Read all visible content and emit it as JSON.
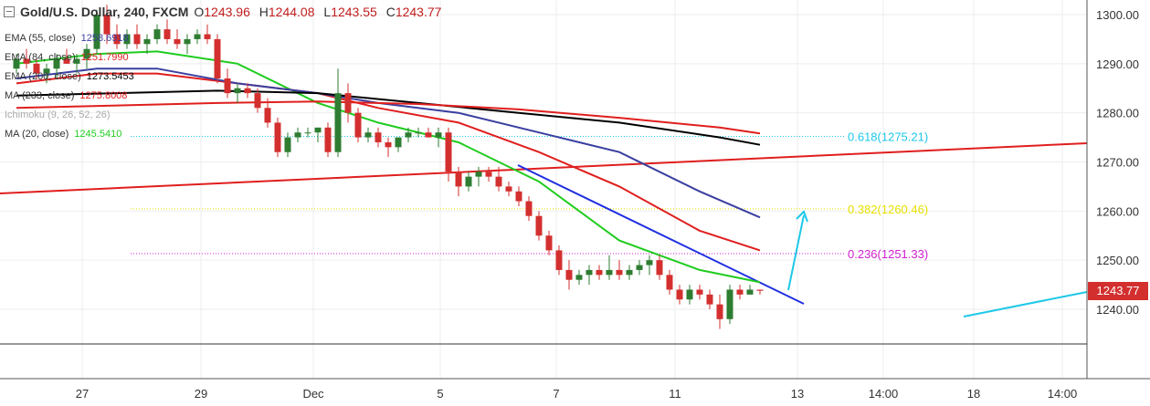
{
  "header": {
    "title": "Gold/U.S. Dollar, 240, FXCM",
    "open_key": "O",
    "open": "1243.96",
    "high_key": "H",
    "high": "1244.08",
    "low_key": "L",
    "low": "1243.55",
    "close_key": "C",
    "close": "1243.77"
  },
  "indicators": [
    {
      "name": "EMA (55, close)",
      "value": "1258.6918",
      "color": "#3a3fa0"
    },
    {
      "name": "EMA (84, close)",
      "value": "1251.7990",
      "color": "#e01e1e"
    },
    {
      "name": "EMA (200, close)",
      "value": "1273.5453",
      "color": "#000000"
    },
    {
      "name": "MA (233, close)",
      "value": "1275.8008",
      "color": "#e01e1e"
    },
    {
      "name": "Ichimoku (9, 26, 52, 26)",
      "value": "",
      "color": "#aaaaaa"
    },
    {
      "name": "MA (20, close)",
      "value": "1245.5410",
      "color": "#1fcc1f"
    }
  ],
  "fib_levels": [
    {
      "label": "0.618(1275.21)",
      "price": 1275.21,
      "color": "#1ec8e8"
    },
    {
      "label": "0.382(1260.46)",
      "price": 1260.46,
      "color": "#e8e000"
    },
    {
      "label": "0.236(1251.33)",
      "price": 1251.33,
      "color": "#d020d0"
    }
  ],
  "last_price": {
    "label": "1243.77",
    "color": "#d32f2f"
  },
  "colors": {
    "up": "#2e7d32",
    "down": "#d32f2f",
    "grid": "#eeeeee"
  },
  "chart_data": {
    "type": "candlestick",
    "yaxis": {
      "ticks": [
        "1300.00",
        "1290.00",
        "1280.00",
        "1270.00",
        "1260.00",
        "1250.00",
        "1240.00"
      ],
      "ylim": [
        1232,
        1302
      ]
    },
    "xaxis": {
      "ticks": [
        "27",
        "29",
        "Dec",
        "5",
        "7",
        "11",
        "13",
        "14:00",
        "18",
        "14:00"
      ]
    },
    "candles": [
      [
        1289,
        1292,
        1288,
        1291
      ],
      [
        1291,
        1293,
        1289,
        1290
      ],
      [
        1290,
        1291,
        1287,
        1288
      ],
      [
        1288,
        1290,
        1286,
        1289
      ],
      [
        1289,
        1292,
        1287,
        1291
      ],
      [
        1291,
        1293,
        1290,
        1290
      ],
      [
        1290,
        1292,
        1288,
        1291
      ],
      [
        1291,
        1294,
        1289,
        1293
      ],
      [
        1293,
        1301,
        1292,
        1300
      ],
      [
        1300,
        1302,
        1294,
        1296
      ],
      [
        1296,
        1298,
        1293,
        1294
      ],
      [
        1294,
        1297,
        1293,
        1296
      ],
      [
        1296,
        1298,
        1293,
        1294
      ],
      [
        1294,
        1296,
        1292,
        1295
      ],
      [
        1295,
        1298,
        1294,
        1297
      ],
      [
        1297,
        1299,
        1294,
        1295
      ],
      [
        1295,
        1297,
        1293,
        1294
      ],
      [
        1294,
        1296,
        1292,
        1295
      ],
      [
        1295,
        1297,
        1294,
        1296
      ],
      [
        1296,
        1298,
        1294,
        1295
      ],
      [
        1295,
        1296,
        1286,
        1287
      ],
      [
        1287,
        1289,
        1283,
        1284
      ],
      [
        1284,
        1286,
        1282,
        1285
      ],
      [
        1285,
        1286,
        1283,
        1284
      ],
      [
        1284,
        1285,
        1280,
        1281
      ],
      [
        1281,
        1283,
        1277,
        1278
      ],
      [
        1278,
        1279,
        1271,
        1272
      ],
      [
        1272,
        1276,
        1271,
        1275
      ],
      [
        1275,
        1277,
        1274,
        1276
      ],
      [
        1276,
        1277,
        1275,
        1276
      ],
      [
        1276,
        1277,
        1274,
        1277
      ],
      [
        1277,
        1278,
        1271,
        1272
      ],
      [
        1272,
        1289,
        1271,
        1284
      ],
      [
        1284,
        1286,
        1278,
        1280
      ],
      [
        1280,
        1281,
        1274,
        1275
      ],
      [
        1275,
        1277,
        1274,
        1276
      ],
      [
        1276,
        1277,
        1273,
        1274
      ],
      [
        1274,
        1275,
        1271,
        1273
      ],
      [
        1273,
        1275,
        1272,
        1275
      ],
      [
        1275,
        1277,
        1274,
        1276
      ],
      [
        1276,
        1277,
        1275,
        1276
      ],
      [
        1276,
        1277,
        1275,
        1275
      ],
      [
        1275,
        1277,
        1273,
        1276
      ],
      [
        1276,
        1277,
        1266,
        1268
      ],
      [
        1268,
        1269,
        1263,
        1265
      ],
      [
        1265,
        1268,
        1264,
        1267
      ],
      [
        1267,
        1269,
        1265,
        1268
      ],
      [
        1268,
        1269,
        1266,
        1267
      ],
      [
        1267,
        1269,
        1264,
        1265
      ],
      [
        1265,
        1266,
        1263,
        1264
      ],
      [
        1264,
        1265,
        1261,
        1262
      ],
      [
        1262,
        1263,
        1258,
        1259
      ],
      [
        1259,
        1260,
        1254,
        1255
      ],
      [
        1255,
        1256,
        1251,
        1252
      ],
      [
        1252,
        1253,
        1247,
        1248
      ],
      [
        1248,
        1250,
        1244,
        1246
      ],
      [
        1246,
        1248,
        1245,
        1247
      ],
      [
        1247,
        1249,
        1245,
        1248
      ],
      [
        1248,
        1249,
        1246,
        1247
      ],
      [
        1247,
        1251,
        1246,
        1248
      ],
      [
        1248,
        1250,
        1246,
        1247
      ],
      [
        1247,
        1249,
        1246,
        1248
      ],
      [
        1248,
        1250,
        1247,
        1249
      ],
      [
        1249,
        1251,
        1247,
        1250
      ],
      [
        1250,
        1251,
        1246,
        1247
      ],
      [
        1247,
        1248,
        1243,
        1244
      ],
      [
        1244,
        1245,
        1241,
        1242
      ],
      [
        1242,
        1245,
        1241,
        1244
      ],
      [
        1244,
        1245,
        1242,
        1243
      ],
      [
        1243,
        1244,
        1240,
        1241
      ],
      [
        1241,
        1243,
        1236,
        1238
      ],
      [
        1238,
        1245,
        1237,
        1244
      ],
      [
        1244,
        1245,
        1242,
        1243
      ],
      [
        1243,
        1245,
        1243,
        1244
      ],
      [
        1244,
        1244,
        1243,
        1243.77
      ]
    ],
    "series": [
      {
        "name": "MA (20, close)",
        "color": "#1fcc1f",
        "x": [
          0,
          8,
          14,
          22,
          30,
          36,
          44,
          52,
          60,
          68,
          74
        ],
        "y": [
          1290,
          1292,
          1292.5,
          1290,
          1282,
          1278,
          1274,
          1266,
          1254,
          1248,
          1245.5
        ]
      },
      {
        "name": "EMA (84, close)",
        "color": "#e01e1e",
        "x": [
          0,
          8,
          14,
          22,
          30,
          36,
          44,
          52,
          60,
          68,
          74
        ],
        "y": [
          1286,
          1288,
          1288,
          1286,
          1284,
          1281,
          1278,
          1272,
          1265,
          1256,
          1252
        ]
      },
      {
        "name": "EMA (55, close)",
        "color": "#3a3fa0",
        "x": [
          0,
          8,
          14,
          22,
          30,
          36,
          44,
          52,
          60,
          68,
          74
        ],
        "y": [
          1287,
          1289,
          1289,
          1286,
          1284,
          1282,
          1280,
          1276,
          1272,
          1264,
          1258.7
        ]
      },
      {
        "name": "EMA (200, close)",
        "color": "#000000",
        "x": [
          0,
          10,
          20,
          30,
          40,
          50,
          60,
          70,
          74
        ],
        "y": [
          1283.5,
          1284,
          1284.5,
          1284,
          1282,
          1280,
          1278,
          1275,
          1273.5
        ]
      },
      {
        "name": "MA (233, close)",
        "color": "#e01e1e",
        "x": [
          0,
          10,
          20,
          30,
          40,
          50,
          60,
          70,
          74
        ],
        "y": [
          1281,
          1281.5,
          1282,
          1282.3,
          1281.8,
          1280.7,
          1279,
          1277,
          1275.8
        ]
      }
    ]
  }
}
